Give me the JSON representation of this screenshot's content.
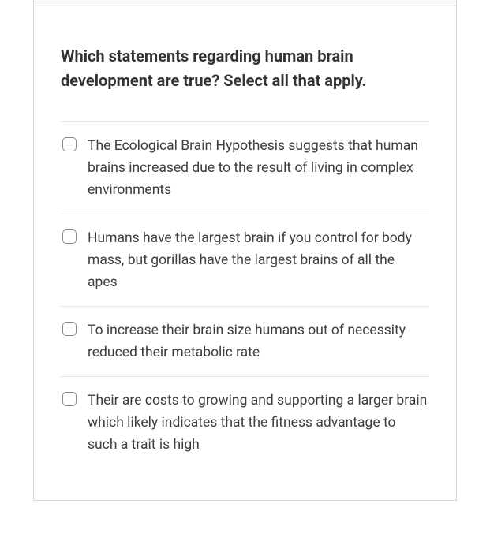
{
  "question": {
    "prompt": "Which statements regarding human brain development are true?   Select all that apply."
  },
  "options": [
    {
      "text": "The Ecological Brain Hypothesis suggests that human brains increased due to the result of living in complex environments"
    },
    {
      "text": "Humans have the largest brain if you control for body mass, but gorillas have the largest brains of all the apes"
    },
    {
      "text": "To increase their brain size humans out of necessity reduced their metabolic rate"
    },
    {
      "text": "Their are costs to growing and supporting a larger brain which likely indicates that the fitness advantage to such a trait is high"
    }
  ],
  "colors": {
    "border": "#d8d8d8",
    "divider": "#e4e4e4",
    "text_primary": "#333333",
    "text_option": "#3d3d3d",
    "checkbox_border": "#8a8a8a",
    "background": "#ffffff"
  }
}
